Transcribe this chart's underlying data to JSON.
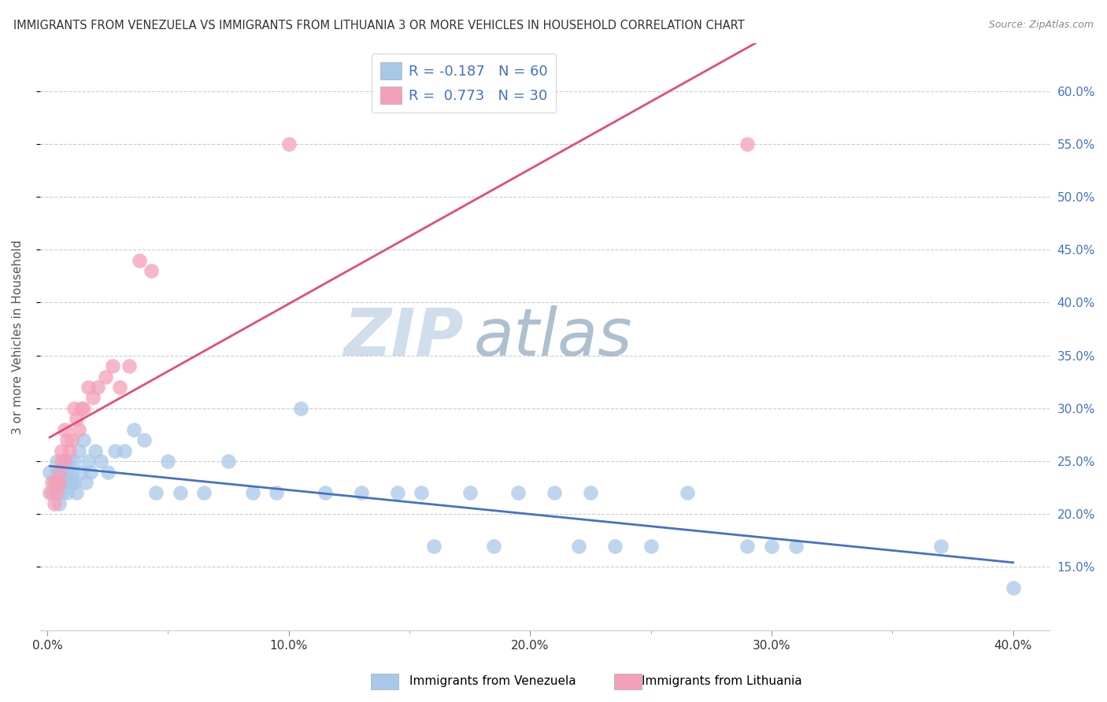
{
  "title": "IMMIGRANTS FROM VENEZUELA VS IMMIGRANTS FROM LITHUANIA 3 OR MORE VEHICLES IN HOUSEHOLD CORRELATION CHART",
  "source": "Source: ZipAtlas.com",
  "ylabel": "3 or more Vehicles in Household",
  "legend_label1": "Immigrants from Venezuela",
  "legend_label2": "Immigrants from Lithuania",
  "R1": -0.187,
  "N1": 60,
  "R2": 0.773,
  "N2": 30,
  "xlim": [
    -0.003,
    0.415
  ],
  "ylim": [
    0.09,
    0.645
  ],
  "xticks": [
    0.0,
    0.1,
    0.2,
    0.3,
    0.4
  ],
  "xtick_labels": [
    "0.0%",
    "10.0%",
    "20.0%",
    "30.0%",
    "40.0%"
  ],
  "yticks_right": [
    0.15,
    0.2,
    0.25,
    0.3,
    0.35,
    0.4,
    0.45,
    0.5,
    0.55,
    0.6
  ],
  "ytick_labels_right": [
    "15.0%",
    "20.0%",
    "25.0%",
    "30.0%",
    "35.0%",
    "40.0%",
    "45.0%",
    "50.0%",
    "55.0%",
    "60.0%"
  ],
  "color_venezuela": "#a8c8e8",
  "color_lithuania": "#f4a0b8",
  "line_color_venezuela": "#4472c4",
  "line_color_lithuania": "#e05070",
  "background": "#ffffff",
  "grid_color": "#cccccc",
  "watermark_zip": "ZIP",
  "watermark_atlas": "atlas",
  "watermark_color_zip": "#c0d0e0",
  "watermark_color_atlas": "#a8b8c8",
  "venezuela_x": [
    0.001,
    0.002,
    0.003,
    0.004,
    0.004,
    0.005,
    0.005,
    0.006,
    0.006,
    0.007,
    0.007,
    0.008,
    0.008,
    0.009,
    0.009,
    0.01,
    0.01,
    0.011,
    0.011,
    0.012,
    0.013,
    0.014,
    0.015,
    0.016,
    0.017,
    0.018,
    0.02,
    0.022,
    0.025,
    0.028,
    0.032,
    0.036,
    0.04,
    0.045,
    0.05,
    0.055,
    0.065,
    0.075,
    0.085,
    0.095,
    0.105,
    0.115,
    0.13,
    0.145,
    0.155,
    0.16,
    0.175,
    0.185,
    0.195,
    0.21,
    0.22,
    0.225,
    0.235,
    0.25,
    0.265,
    0.29,
    0.3,
    0.31,
    0.37,
    0.4
  ],
  "venezuela_y": [
    0.24,
    0.22,
    0.23,
    0.25,
    0.24,
    0.21,
    0.23,
    0.22,
    0.24,
    0.23,
    0.25,
    0.24,
    0.22,
    0.23,
    0.25,
    0.24,
    0.23,
    0.25,
    0.23,
    0.22,
    0.26,
    0.24,
    0.27,
    0.23,
    0.25,
    0.24,
    0.26,
    0.25,
    0.24,
    0.26,
    0.26,
    0.28,
    0.27,
    0.22,
    0.25,
    0.22,
    0.22,
    0.25,
    0.22,
    0.22,
    0.3,
    0.22,
    0.22,
    0.22,
    0.22,
    0.17,
    0.22,
    0.17,
    0.22,
    0.22,
    0.17,
    0.22,
    0.17,
    0.17,
    0.22,
    0.17,
    0.17,
    0.17,
    0.17,
    0.13
  ],
  "lithuania_x": [
    0.001,
    0.002,
    0.003,
    0.004,
    0.004,
    0.005,
    0.005,
    0.006,
    0.006,
    0.007,
    0.007,
    0.008,
    0.009,
    0.01,
    0.011,
    0.012,
    0.013,
    0.014,
    0.015,
    0.017,
    0.019,
    0.021,
    0.024,
    0.027,
    0.03,
    0.034,
    0.038,
    0.043,
    0.1,
    0.29
  ],
  "lithuania_y": [
    0.22,
    0.23,
    0.21,
    0.22,
    0.23,
    0.24,
    0.23,
    0.25,
    0.26,
    0.25,
    0.28,
    0.27,
    0.26,
    0.27,
    0.3,
    0.29,
    0.28,
    0.3,
    0.3,
    0.32,
    0.31,
    0.32,
    0.33,
    0.34,
    0.32,
    0.34,
    0.44,
    0.43,
    0.55,
    0.55
  ],
  "lit_trend_x0": 0.001,
  "lit_trend_x1": 0.3,
  "ven_trend_x0": 0.001,
  "ven_trend_x1": 0.4
}
